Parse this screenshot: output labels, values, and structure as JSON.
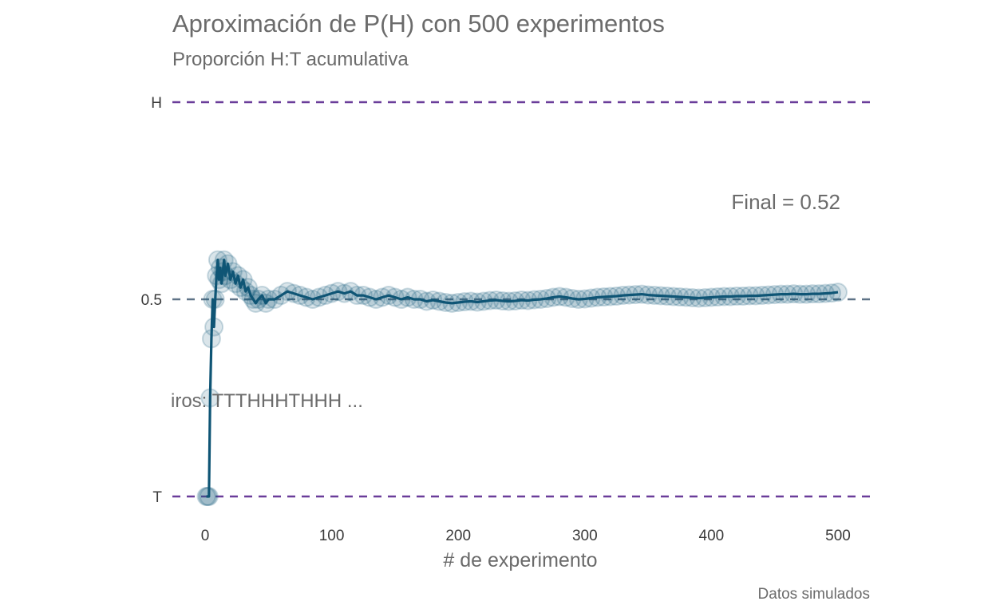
{
  "chart_data": {
    "type": "line",
    "title": "Aproximación de P(H) con 500 experimentos",
    "subtitle": "Proporción H:T acumulativa",
    "xlabel": "# de experimento",
    "ylabel": "",
    "caption": "Datos simulados",
    "xlim": [
      -20,
      520
    ],
    "ylim": [
      0,
      1
    ],
    "x_ticks": [
      0,
      100,
      200,
      300,
      400,
      500
    ],
    "y_ticks": [
      {
        "value": 1,
        "label": "H"
      },
      {
        "value": 0.5,
        "label": "0.5"
      },
      {
        "value": 0,
        "label": "T"
      }
    ],
    "reference_lines": [
      {
        "y": 1,
        "style": "dashed",
        "color": "#6a3d9a"
      },
      {
        "y": 0.5,
        "style": "dashed",
        "color": "#5f7387"
      },
      {
        "y": 0,
        "style": "dashed",
        "color": "#6a3d9a"
      }
    ],
    "annotations": {
      "final": "Final =  0.52",
      "sequence": "iros:  TTTHHHTHHH ..."
    },
    "grid": false,
    "line_color": "#0f5575",
    "point_color": "#1b5f7f",
    "series": [
      {
        "values": [
          [
            1,
            0
          ],
          [
            2,
            0
          ],
          [
            3,
            0
          ],
          [
            4,
            0.25
          ],
          [
            5,
            0.4
          ],
          [
            6,
            0.5
          ],
          [
            7,
            0.43
          ],
          [
            8,
            0.5
          ],
          [
            9,
            0.56
          ],
          [
            10,
            0.6
          ],
          [
            11,
            0.55
          ],
          [
            12,
            0.58
          ],
          [
            13,
            0.54
          ],
          [
            14,
            0.57
          ],
          [
            15,
            0.6
          ],
          [
            16,
            0.56
          ],
          [
            18,
            0.59
          ],
          [
            20,
            0.55
          ],
          [
            22,
            0.57
          ],
          [
            24,
            0.54
          ],
          [
            26,
            0.56
          ],
          [
            28,
            0.53
          ],
          [
            30,
            0.55
          ],
          [
            32,
            0.52
          ],
          [
            34,
            0.53
          ],
          [
            36,
            0.51
          ],
          [
            38,
            0.5
          ],
          [
            40,
            0.49
          ],
          [
            42,
            0.5
          ],
          [
            45,
            0.51
          ],
          [
            48,
            0.49
          ],
          [
            50,
            0.5
          ],
          [
            55,
            0.5
          ],
          [
            60,
            0.51
          ],
          [
            65,
            0.52
          ],
          [
            70,
            0.515
          ],
          [
            75,
            0.51
          ],
          [
            80,
            0.505
          ],
          [
            85,
            0.5
          ],
          [
            90,
            0.505
          ],
          [
            95,
            0.51
          ],
          [
            100,
            0.515
          ],
          [
            105,
            0.52
          ],
          [
            110,
            0.515
          ],
          [
            115,
            0.52
          ],
          [
            120,
            0.51
          ],
          [
            125,
            0.51
          ],
          [
            130,
            0.505
          ],
          [
            135,
            0.5
          ],
          [
            140,
            0.505
          ],
          [
            145,
            0.51
          ],
          [
            150,
            0.505
          ],
          [
            155,
            0.5
          ],
          [
            160,
            0.505
          ],
          [
            165,
            0.5
          ],
          [
            170,
            0.5
          ],
          [
            175,
            0.495
          ],
          [
            180,
            0.498
          ],
          [
            185,
            0.495
          ],
          [
            190,
            0.492
          ],
          [
            195,
            0.49
          ],
          [
            200,
            0.492
          ],
          [
            205,
            0.494
          ],
          [
            210,
            0.495
          ],
          [
            215,
            0.493
          ],
          [
            220,
            0.495
          ],
          [
            225,
            0.497
          ],
          [
            230,
            0.498
          ],
          [
            235,
            0.496
          ],
          [
            240,
            0.495
          ],
          [
            245,
            0.496
          ],
          [
            250,
            0.498
          ],
          [
            255,
            0.497
          ],
          [
            260,
            0.499
          ],
          [
            265,
            0.5
          ],
          [
            270,
            0.502
          ],
          [
            275,
            0.505
          ],
          [
            280,
            0.507
          ],
          [
            285,
            0.505
          ],
          [
            290,
            0.502
          ],
          [
            295,
            0.5
          ],
          [
            300,
            0.501
          ],
          [
            305,
            0.503
          ],
          [
            310,
            0.505
          ],
          [
            315,
            0.506
          ],
          [
            320,
            0.507
          ],
          [
            325,
            0.508
          ],
          [
            330,
            0.51
          ],
          [
            335,
            0.511
          ],
          [
            340,
            0.512
          ],
          [
            345,
            0.513
          ],
          [
            350,
            0.511
          ],
          [
            355,
            0.51
          ],
          [
            360,
            0.509
          ],
          [
            365,
            0.508
          ],
          [
            370,
            0.507
          ],
          [
            375,
            0.506
          ],
          [
            380,
            0.505
          ],
          [
            385,
            0.504
          ],
          [
            390,
            0.503
          ],
          [
            395,
            0.504
          ],
          [
            400,
            0.505
          ],
          [
            405,
            0.506
          ],
          [
            410,
            0.507
          ],
          [
            415,
            0.507
          ],
          [
            420,
            0.508
          ],
          [
            425,
            0.508
          ],
          [
            430,
            0.509
          ],
          [
            435,
            0.509
          ],
          [
            440,
            0.51
          ],
          [
            445,
            0.511
          ],
          [
            450,
            0.512
          ],
          [
            455,
            0.513
          ],
          [
            460,
            0.513
          ],
          [
            465,
            0.514
          ],
          [
            470,
            0.513
          ],
          [
            475,
            0.513
          ],
          [
            480,
            0.514
          ],
          [
            485,
            0.514
          ],
          [
            490,
            0.515
          ],
          [
            495,
            0.516
          ],
          [
            500,
            0.518
          ]
        ]
      }
    ]
  }
}
